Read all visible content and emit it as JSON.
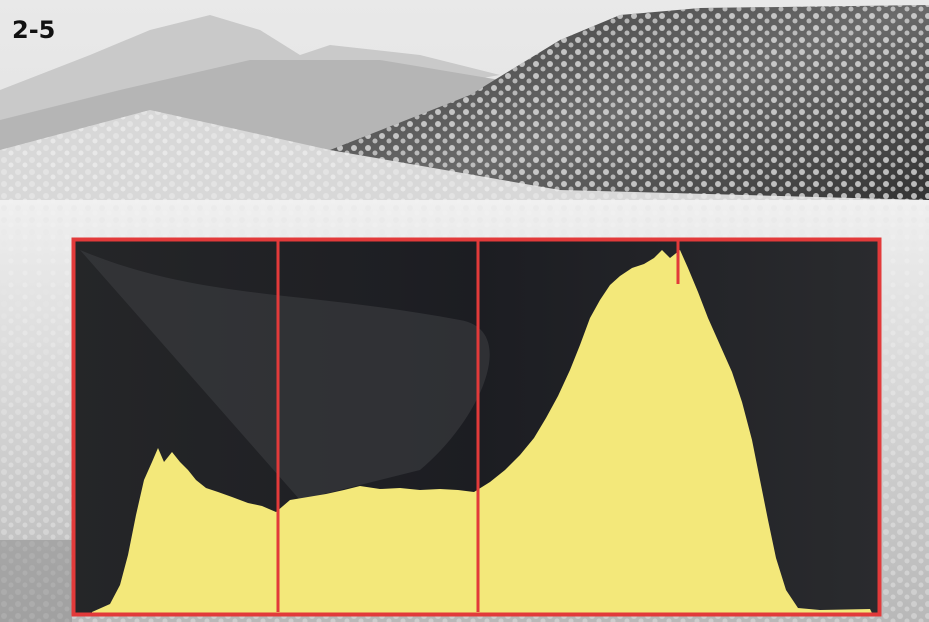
{
  "figure_label": "2-5"
}
